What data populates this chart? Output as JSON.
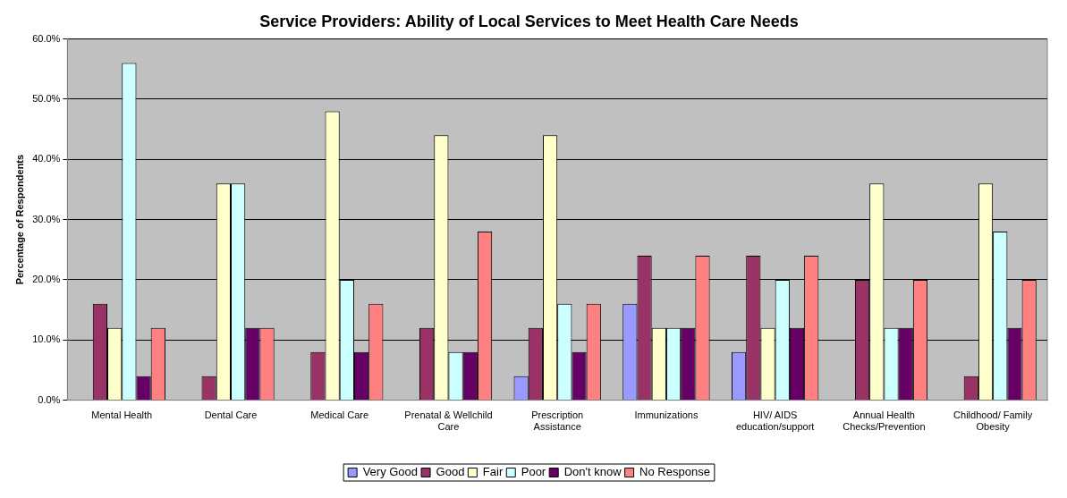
{
  "chart_data": {
    "type": "bar",
    "title": "Service Providers: Ability of Local Services to Meet Health Care Needs",
    "ylabel": "Percentage of Respondents",
    "categories": [
      "Mental Health",
      "Dental Care",
      "Medical Care",
      "Prenatal & Wellchild Care",
      "Prescription Assistance",
      "Immunizations",
      "HIV/ AIDS education/support",
      "Annual Health Checks/Prevention",
      "Childhood/ Family Obesity"
    ],
    "series": [
      {
        "name": "Very Good",
        "color": "#9999ff",
        "values": [
          0,
          0,
          0,
          0,
          4,
          16,
          8,
          0,
          0
        ]
      },
      {
        "name": "Good",
        "color": "#993366",
        "values": [
          16,
          4,
          8,
          12,
          12,
          24,
          24,
          20,
          4
        ]
      },
      {
        "name": "Fair",
        "color": "#ffffcc",
        "values": [
          12,
          36,
          48,
          44,
          44,
          12,
          12,
          36,
          36
        ]
      },
      {
        "name": "Poor",
        "color": "#ccffff",
        "values": [
          56,
          36,
          20,
          8,
          16,
          12,
          20,
          12,
          28
        ]
      },
      {
        "name": "Don't know",
        "color": "#660066",
        "values": [
          4,
          12,
          8,
          8,
          8,
          12,
          12,
          12,
          12
        ]
      },
      {
        "name": "No Response",
        "color": "#ff8080",
        "values": [
          12,
          12,
          16,
          28,
          16,
          24,
          24,
          20,
          20
        ]
      }
    ],
    "ylim": [
      0,
      60
    ],
    "yticks": [
      {
        "value": 0,
        "label": "0.0%"
      },
      {
        "value": 10,
        "label": "10.0%"
      },
      {
        "value": 20,
        "label": "20.0%"
      },
      {
        "value": 30,
        "label": "30.0%"
      },
      {
        "value": 40,
        "label": "40.0%"
      },
      {
        "value": 50,
        "label": "50.0%"
      },
      {
        "value": 60,
        "label": "60.0%"
      }
    ],
    "grid": "y",
    "legend": "bottom"
  }
}
